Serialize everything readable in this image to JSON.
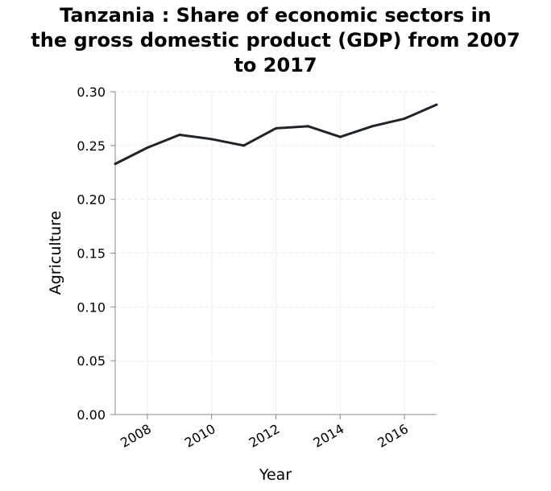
{
  "chart_data": {
    "type": "line",
    "title_lines": [
      "Tanzania : Share of economic sectors in",
      "the gross domestic product (GDP) from 2007",
      "to 2017"
    ],
    "xlabel": "Year",
    "ylabel": "Agriculture",
    "xlim": [
      2007,
      2017
    ],
    "ylim": [
      0.0,
      0.3
    ],
    "x_ticks": [
      2008,
      2010,
      2012,
      2014,
      2016
    ],
    "x_tick_labels": [
      "2008",
      "2010",
      "2012",
      "2014",
      "2016"
    ],
    "y_ticks": [
      0.0,
      0.05,
      0.1,
      0.15,
      0.2,
      0.25,
      0.3
    ],
    "y_tick_labels": [
      "0.00",
      "0.05",
      "0.10",
      "0.15",
      "0.20",
      "0.25",
      "0.30"
    ],
    "grid": true,
    "series": [
      {
        "x": [
          2007,
          2008,
          2009,
          2010,
          2011,
          2012,
          2013,
          2014,
          2015,
          2016,
          2017
        ],
        "values": [
          0.233,
          0.248,
          0.26,
          0.256,
          0.25,
          0.266,
          0.268,
          0.258,
          0.268,
          0.275,
          0.288
        ],
        "color": "#1f2429"
      }
    ]
  }
}
